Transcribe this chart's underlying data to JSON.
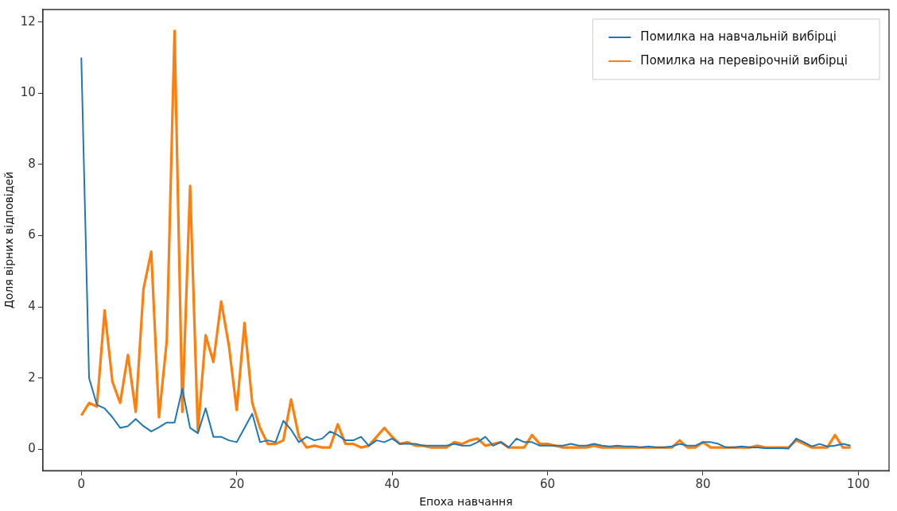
{
  "chart_data": {
    "type": "line",
    "xlabel": "Епоха навчання",
    "ylabel": "Доля вірних відповідей",
    "x": [
      0,
      1,
      2,
      3,
      4,
      5,
      6,
      7,
      8,
      9,
      10,
      11,
      12,
      13,
      14,
      15,
      16,
      17,
      18,
      19,
      20,
      21,
      22,
      23,
      24,
      25,
      26,
      27,
      28,
      29,
      30,
      31,
      32,
      33,
      34,
      35,
      36,
      37,
      38,
      39,
      40,
      41,
      42,
      43,
      44,
      45,
      46,
      47,
      48,
      49,
      50,
      51,
      52,
      53,
      54,
      55,
      56,
      57,
      58,
      59,
      60,
      61,
      62,
      63,
      64,
      65,
      66,
      67,
      68,
      69,
      70,
      71,
      72,
      73,
      74,
      75,
      76,
      77,
      78,
      79,
      80,
      81,
      82,
      83,
      84,
      85,
      86,
      87,
      88,
      89,
      90,
      91,
      92,
      93,
      94,
      95,
      96,
      97,
      98,
      99
    ],
    "series": [
      {
        "name": "Помилка на навчальній вибірці",
        "color": "#1f77b4",
        "values": [
          11,
          2.0,
          1.25,
          1.15,
          0.9,
          0.6,
          0.65,
          0.85,
          0.65,
          0.5,
          0.62,
          0.75,
          0.75,
          1.7,
          0.6,
          0.45,
          1.15,
          0.35,
          0.35,
          0.25,
          0.2,
          0.6,
          1.0,
          0.2,
          0.25,
          0.2,
          0.8,
          0.55,
          0.2,
          0.35,
          0.25,
          0.3,
          0.5,
          0.4,
          0.25,
          0.25,
          0.35,
          0.1,
          0.25,
          0.2,
          0.3,
          0.15,
          0.15,
          0.15,
          0.1,
          0.1,
          0.1,
          0.1,
          0.15,
          0.1,
          0.1,
          0.2,
          0.35,
          0.1,
          0.2,
          0.05,
          0.3,
          0.2,
          0.2,
          0.1,
          0.1,
          0.1,
          0.1,
          0.15,
          0.1,
          0.1,
          0.15,
          0.1,
          0.08,
          0.1,
          0.08,
          0.08,
          0.05,
          0.08,
          0.05,
          0.05,
          0.08,
          0.15,
          0.1,
          0.1,
          0.2,
          0.2,
          0.15,
          0.05,
          0.05,
          0.08,
          0.05,
          0.05,
          0.03,
          0.03,
          0.03,
          0.02,
          0.3,
          0.2,
          0.08,
          0.15,
          0.08,
          0.1,
          0.15,
          0.1
        ]
      },
      {
        "name": "Помилка на перевірочній вибірці",
        "color": "#ff7f0e",
        "values": [
          0.95,
          1.3,
          1.2,
          3.9,
          1.9,
          1.3,
          2.65,
          1.05,
          4.5,
          5.55,
          0.9,
          3.05,
          11.75,
          1.05,
          7.4,
          0.5,
          3.2,
          2.45,
          4.15,
          2.9,
          1.1,
          3.55,
          1.3,
          0.6,
          0.15,
          0.15,
          0.25,
          1.4,
          0.35,
          0.05,
          0.1,
          0.05,
          0.05,
          0.7,
          0.15,
          0.15,
          0.05,
          0.1,
          0.35,
          0.6,
          0.35,
          0.15,
          0.2,
          0.1,
          0.1,
          0.05,
          0.05,
          0.05,
          0.2,
          0.15,
          0.25,
          0.3,
          0.1,
          0.15,
          0.2,
          0.05,
          0.05,
          0.05,
          0.4,
          0.15,
          0.15,
          0.1,
          0.05,
          0.05,
          0.05,
          0.05,
          0.1,
          0.05,
          0.05,
          0.05,
          0.05,
          0.05,
          0.05,
          0.05,
          0.05,
          0.05,
          0.05,
          0.25,
          0.05,
          0.05,
          0.2,
          0.05,
          0.05,
          0.05,
          0.05,
          0.05,
          0.05,
          0.1,
          0.05,
          0.05,
          0.05,
          0.05,
          0.25,
          0.15,
          0.05,
          0.05,
          0.05,
          0.4,
          0.05,
          0.05
        ]
      }
    ],
    "xlim": [
      -4.95,
      103.95
    ],
    "xticks": [
      0,
      20,
      40,
      60,
      80,
      100
    ],
    "ylim": [
      -0.6,
      12.35
    ],
    "yticks": [
      0,
      2,
      4,
      6,
      8,
      10,
      12
    ],
    "legend": "top right",
    "grid": false,
    "marker": "none",
    "line_style": "solid"
  }
}
